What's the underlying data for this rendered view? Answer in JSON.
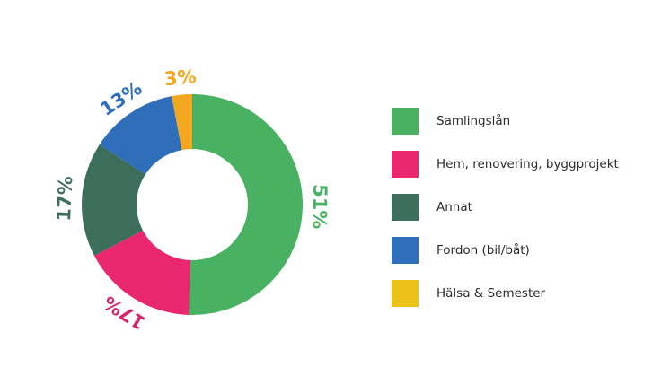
{
  "chart_data": {
    "type": "pie",
    "variant": "donut",
    "series": [
      {
        "name": "Samlingslån",
        "value": 51,
        "label": "51%",
        "color": "#48b262"
      },
      {
        "name": "Hem, renovering, byggprojekt",
        "value": 17,
        "label": "17%",
        "color": "#e8276e"
      },
      {
        "name": "Annat",
        "value": 17,
        "label": "17%",
        "color": "#3d6e5c"
      },
      {
        "name": "Fordon (bil/båt)",
        "value": 13,
        "label": "13%",
        "color": "#2f6eb8"
      },
      {
        "name": "Hälsa & Semester",
        "value": 3,
        "label": "3%",
        "color": "#f2a71e"
      }
    ],
    "legend_position": "right",
    "legend_colors": [
      "#48b262",
      "#e8276e",
      "#3d6e5c",
      "#2f6eb8",
      "#ecc11a"
    ],
    "label_colors": [
      "#48b262",
      "#d8246a",
      "#3d6e5c",
      "#2f6eb8",
      "#f2a71e"
    ]
  }
}
